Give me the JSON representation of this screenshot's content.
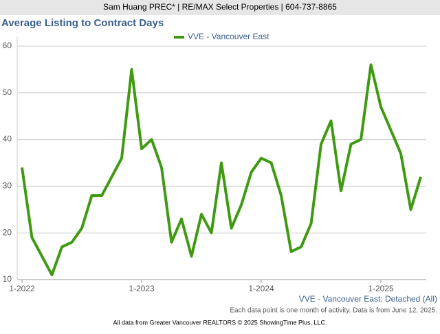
{
  "header": "Sam Huang PREC* | RE/MAX Select Properties | 604-737-8865",
  "chart_data": {
    "type": "line",
    "title": "Average Listing to Contract Days",
    "categories": [
      "1-2022",
      null,
      null,
      null,
      null,
      null,
      null,
      null,
      null,
      null,
      null,
      null,
      "1-2023",
      null,
      null,
      null,
      null,
      null,
      null,
      null,
      null,
      null,
      null,
      null,
      "1-2024",
      null,
      null,
      null,
      null,
      null,
      null,
      null,
      null,
      null,
      null,
      null,
      "1-2025",
      null,
      null,
      null,
      null
    ],
    "series": [
      {
        "name": "VVE - Vancouver East",
        "color": "#3f9a12",
        "values": [
          34,
          19,
          15,
          11,
          17,
          18,
          21,
          28,
          28,
          32,
          36,
          55,
          38,
          40,
          34,
          18,
          23,
          15,
          24,
          20,
          35,
          21,
          26,
          33,
          36,
          35,
          28,
          16,
          17,
          22,
          39,
          44,
          29,
          39,
          40,
          56,
          47,
          42,
          37,
          25,
          32
        ]
      }
    ],
    "ylim": [
      10,
      62
    ],
    "yticks": [
      10,
      20,
      30,
      40,
      50,
      60
    ],
    "grid": true,
    "legend": "top",
    "subtitle": "VVE - Vancouver East: Detached (All)",
    "note": "Each data point is one month of activity. Data is from June 12, 2025.",
    "footer": "All data from Greater Vancouver REALTORS © 2025 ShowingTime Plus, LLC."
  }
}
